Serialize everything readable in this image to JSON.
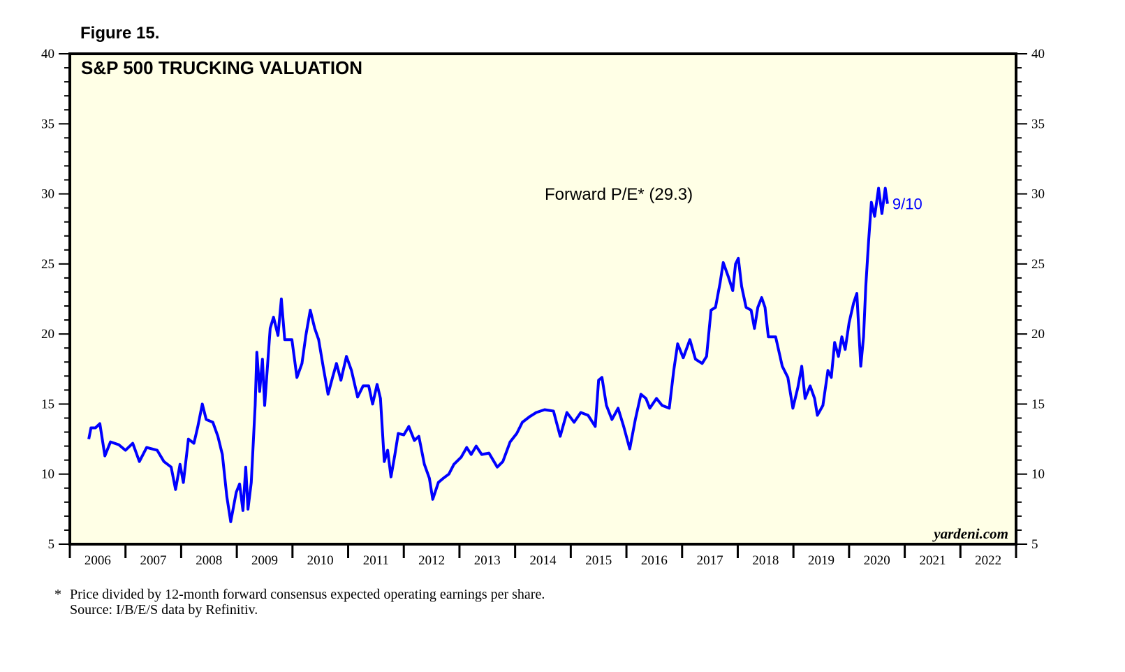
{
  "figure_label": "Figure 15.",
  "footnote": {
    "marker": "*",
    "line1": "Price divided by 12-month forward consensus expected operating earnings per share.",
    "line2": "Source: I/B/E/S data by Refinitiv."
  },
  "colors": {
    "line": "#0000ff",
    "plot_bg": "#ffffe6",
    "frame": "#000000"
  },
  "chart_data": {
    "type": "line",
    "title": "S&P 500 TRUCKING VALUATION",
    "annotation": "Forward P/E* (29.3)",
    "last_label": "9/10",
    "watermark": "yardeni.com",
    "ylim": [
      5,
      40
    ],
    "yticks": [
      5,
      10,
      15,
      20,
      25,
      30,
      35,
      40
    ],
    "xlim": [
      2006,
      2023
    ],
    "xtick_labels": [
      "2006",
      "2007",
      "2008",
      "2009",
      "2010",
      "2011",
      "2012",
      "2013",
      "2014",
      "2015",
      "2016",
      "2017",
      "2018",
      "2019",
      "2020",
      "2021",
      "2022"
    ],
    "grid": false,
    "series": [
      {
        "points": [
          [
            2006.34,
            12.5
          ],
          [
            2006.38,
            13.3
          ],
          [
            2006.46,
            13.3
          ],
          [
            2006.54,
            13.6
          ],
          [
            2006.63,
            11.3
          ],
          [
            2006.73,
            12.3
          ],
          [
            2006.88,
            12.1
          ],
          [
            2007.0,
            11.7
          ],
          [
            2007.13,
            12.2
          ],
          [
            2007.25,
            10.9
          ],
          [
            2007.38,
            11.9
          ],
          [
            2007.57,
            11.7
          ],
          [
            2007.69,
            10.9
          ],
          [
            2007.82,
            10.5
          ],
          [
            2007.9,
            8.9
          ],
          [
            2007.98,
            10.7
          ],
          [
            2008.04,
            9.4
          ],
          [
            2008.13,
            12.5
          ],
          [
            2008.23,
            12.2
          ],
          [
            2008.3,
            13.4
          ],
          [
            2008.38,
            15.0
          ],
          [
            2008.45,
            13.9
          ],
          [
            2008.57,
            13.7
          ],
          [
            2008.66,
            12.7
          ],
          [
            2008.74,
            11.4
          ],
          [
            2008.82,
            8.4
          ],
          [
            2008.89,
            6.6
          ],
          [
            2008.99,
            8.7
          ],
          [
            2009.05,
            9.3
          ],
          [
            2009.11,
            7.4
          ],
          [
            2009.16,
            10.5
          ],
          [
            2009.2,
            7.5
          ],
          [
            2009.26,
            9.4
          ],
          [
            2009.33,
            14.9
          ],
          [
            2009.36,
            18.7
          ],
          [
            2009.41,
            15.9
          ],
          [
            2009.46,
            18.2
          ],
          [
            2009.5,
            14.9
          ],
          [
            2009.6,
            20.4
          ],
          [
            2009.66,
            21.2
          ],
          [
            2009.74,
            19.9
          ],
          [
            2009.8,
            22.5
          ],
          [
            2009.86,
            19.6
          ],
          [
            2009.99,
            19.6
          ],
          [
            2010.08,
            16.9
          ],
          [
            2010.17,
            17.9
          ],
          [
            2010.24,
            19.9
          ],
          [
            2010.32,
            21.7
          ],
          [
            2010.4,
            20.4
          ],
          [
            2010.47,
            19.6
          ],
          [
            2010.55,
            17.7
          ],
          [
            2010.64,
            15.7
          ],
          [
            2010.72,
            16.9
          ],
          [
            2010.79,
            17.9
          ],
          [
            2010.87,
            16.7
          ],
          [
            2010.97,
            18.4
          ],
          [
            2011.06,
            17.4
          ],
          [
            2011.17,
            15.5
          ],
          [
            2011.27,
            16.3
          ],
          [
            2011.37,
            16.3
          ],
          [
            2011.44,
            15.0
          ],
          [
            2011.52,
            16.4
          ],
          [
            2011.58,
            15.4
          ],
          [
            2011.65,
            10.9
          ],
          [
            2011.71,
            11.7
          ],
          [
            2011.77,
            9.8
          ],
          [
            2011.84,
            11.4
          ],
          [
            2011.9,
            12.9
          ],
          [
            2012.0,
            12.8
          ],
          [
            2012.09,
            13.4
          ],
          [
            2012.19,
            12.4
          ],
          [
            2012.27,
            12.7
          ],
          [
            2012.37,
            10.7
          ],
          [
            2012.46,
            9.7
          ],
          [
            2012.52,
            8.2
          ],
          [
            2012.62,
            9.4
          ],
          [
            2012.71,
            9.7
          ],
          [
            2012.81,
            10.0
          ],
          [
            2012.9,
            10.7
          ],
          [
            2013.03,
            11.2
          ],
          [
            2013.13,
            11.9
          ],
          [
            2013.21,
            11.4
          ],
          [
            2013.3,
            12.0
          ],
          [
            2013.4,
            11.4
          ],
          [
            2013.53,
            11.5
          ],
          [
            2013.68,
            10.5
          ],
          [
            2013.78,
            10.9
          ],
          [
            2013.91,
            12.3
          ],
          [
            2014.03,
            12.9
          ],
          [
            2014.13,
            13.7
          ],
          [
            2014.26,
            14.1
          ],
          [
            2014.38,
            14.4
          ],
          [
            2014.53,
            14.6
          ],
          [
            2014.69,
            14.5
          ],
          [
            2014.81,
            12.7
          ],
          [
            2014.93,
            14.4
          ],
          [
            2015.06,
            13.7
          ],
          [
            2015.18,
            14.4
          ],
          [
            2015.31,
            14.2
          ],
          [
            2015.44,
            13.4
          ],
          [
            2015.5,
            16.7
          ],
          [
            2015.56,
            16.9
          ],
          [
            2015.64,
            14.9
          ],
          [
            2015.74,
            13.9
          ],
          [
            2015.85,
            14.7
          ],
          [
            2015.95,
            13.4
          ],
          [
            2016.06,
            11.8
          ],
          [
            2016.16,
            13.9
          ],
          [
            2016.26,
            15.7
          ],
          [
            2016.35,
            15.4
          ],
          [
            2016.42,
            14.7
          ],
          [
            2016.54,
            15.4
          ],
          [
            2016.64,
            14.9
          ],
          [
            2016.77,
            14.7
          ],
          [
            2016.85,
            17.4
          ],
          [
            2016.92,
            19.3
          ],
          [
            2017.02,
            18.3
          ],
          [
            2017.14,
            19.6
          ],
          [
            2017.24,
            18.2
          ],
          [
            2017.36,
            17.9
          ],
          [
            2017.44,
            18.4
          ],
          [
            2017.52,
            21.7
          ],
          [
            2017.6,
            21.9
          ],
          [
            2017.68,
            23.6
          ],
          [
            2017.74,
            25.1
          ],
          [
            2017.83,
            24.1
          ],
          [
            2017.91,
            23.1
          ],
          [
            2017.96,
            25.0
          ],
          [
            2018.01,
            25.4
          ],
          [
            2018.07,
            23.4
          ],
          [
            2018.15,
            21.9
          ],
          [
            2018.24,
            21.7
          ],
          [
            2018.3,
            20.4
          ],
          [
            2018.36,
            21.9
          ],
          [
            2018.43,
            22.6
          ],
          [
            2018.49,
            21.9
          ],
          [
            2018.55,
            19.8
          ],
          [
            2018.68,
            19.8
          ],
          [
            2018.8,
            17.7
          ],
          [
            2018.9,
            16.9
          ],
          [
            2018.99,
            14.7
          ],
          [
            2019.08,
            16.2
          ],
          [
            2019.15,
            17.7
          ],
          [
            2019.21,
            15.4
          ],
          [
            2019.3,
            16.3
          ],
          [
            2019.38,
            15.4
          ],
          [
            2019.43,
            14.2
          ],
          [
            2019.53,
            14.9
          ],
          [
            2019.62,
            17.4
          ],
          [
            2019.68,
            16.9
          ],
          [
            2019.74,
            19.4
          ],
          [
            2019.81,
            18.4
          ],
          [
            2019.87,
            19.8
          ],
          [
            2019.93,
            18.9
          ],
          [
            2020.0,
            20.8
          ],
          [
            2020.08,
            22.2
          ],
          [
            2020.14,
            22.9
          ],
          [
            2020.21,
            17.7
          ],
          [
            2020.26,
            19.8
          ],
          [
            2020.3,
            23.4
          ],
          [
            2020.35,
            26.6
          ],
          [
            2020.4,
            29.4
          ],
          [
            2020.46,
            28.4
          ],
          [
            2020.53,
            30.4
          ],
          [
            2020.59,
            28.6
          ],
          [
            2020.65,
            30.4
          ],
          [
            2020.69,
            29.3
          ]
        ]
      }
    ]
  }
}
